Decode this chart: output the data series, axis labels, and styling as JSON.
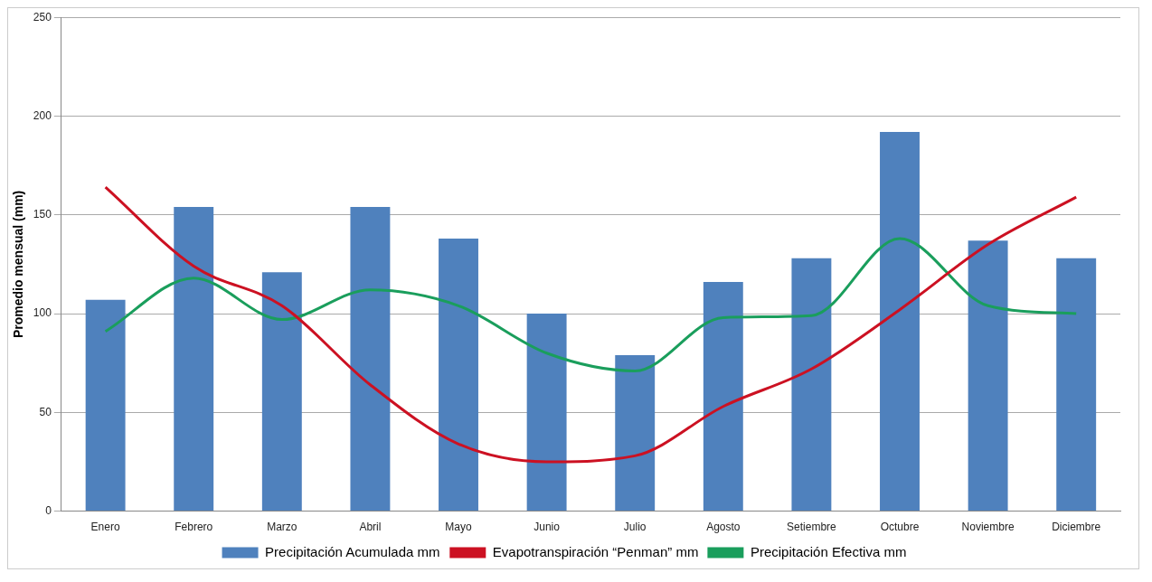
{
  "chart_data": {
    "type": "bar",
    "ylabel": "Promedio mensual (mm)",
    "categories": [
      "Enero",
      "Febrero",
      "Marzo",
      "Abril",
      "Mayo",
      "Junio",
      "Julio",
      "Agosto",
      "Setiembre",
      "Octubre",
      "Noviembre",
      "Diciembre"
    ],
    "series": [
      {
        "name": "Precipitación Acumulada mm",
        "color": "#4f81bd",
        "values": [
          107,
          154,
          121,
          154,
          138,
          100,
          79,
          116,
          128,
          192,
          137,
          128
        ]
      },
      {
        "name": "Evapotranspiración “Penman” mm",
        "type": "line",
        "color": "#cc1122",
        "values": [
          164,
          124,
          104,
          64,
          34,
          25,
          28,
          53,
          72,
          102,
          135,
          159
        ]
      },
      {
        "name": "Precipitación Efectiva mm",
        "type": "line",
        "color": "#1a9e5c",
        "values": [
          91,
          118,
          97,
          112,
          104,
          80,
          71,
          98,
          99,
          138,
          104,
          100
        ]
      }
    ],
    "ylim": [
      0,
      250
    ],
    "yticks": [
      0,
      50,
      100,
      150,
      200,
      250
    ],
    "grid": "y",
    "legend": "bottom",
    "marker": "none"
  }
}
